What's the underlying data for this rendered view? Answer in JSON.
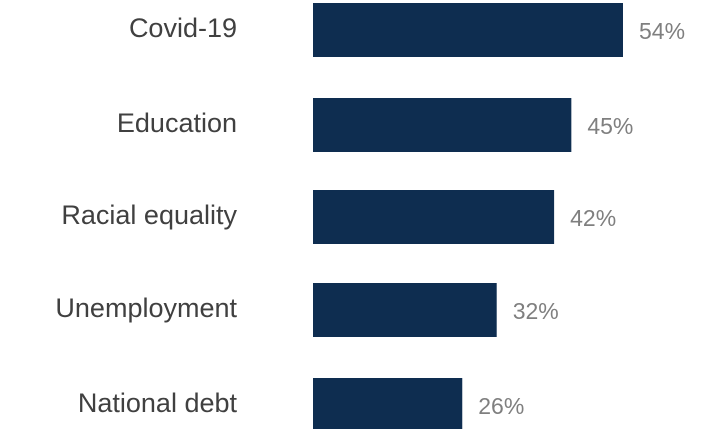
{
  "chart_data": {
    "type": "bar",
    "orientation": "horizontal",
    "categories": [
      "Covid-19",
      "Education",
      "Racial equality",
      "Unemployment",
      "National debt"
    ],
    "values": [
      54,
      45,
      42,
      32,
      26
    ],
    "value_labels": [
      "54%",
      "45%",
      "42%",
      "32%",
      "26%"
    ],
    "unit": "%",
    "xlim": [
      0,
      100
    ],
    "grid": false,
    "legend": "none",
    "bar_color": "#0e2d50",
    "label_color": "#404040",
    "value_label_color": "#7f7f7f"
  }
}
